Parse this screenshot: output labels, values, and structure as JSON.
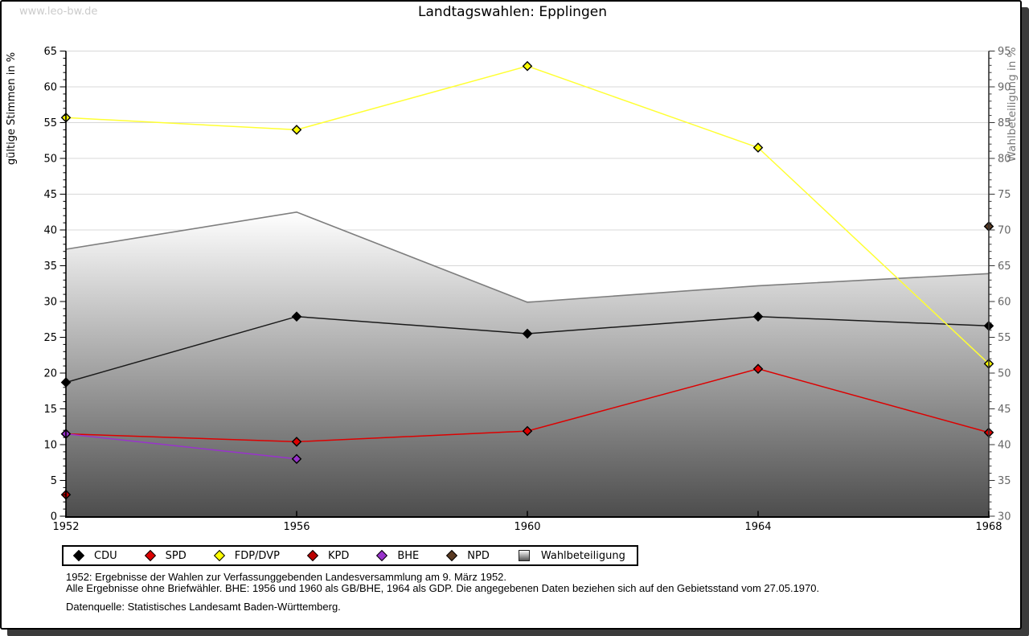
{
  "watermark": "www.leo-bw.de",
  "header": {
    "title": "Landtagswahlen: Epplingen"
  },
  "chart_data": {
    "type": "line",
    "title": "Landtagswahlen: Epplingen",
    "x_range": [
      1952,
      1968
    ],
    "x_years": [
      1952,
      1956,
      1960,
      1964,
      1968
    ],
    "left_axis": {
      "label": "gültige Stimmen in %",
      "min": 0,
      "max": 65,
      "tick_step": 5,
      "minor_step": 1
    },
    "right_axis": {
      "label": "Wahlbeteiligung in %",
      "min": 30,
      "max": 95,
      "tick_step": 5,
      "minor_step": 1
    },
    "grid": true,
    "legend_position": "bottom",
    "series": [
      {
        "name": "CDU",
        "axis": "left",
        "type": "line",
        "marker": "diamond",
        "color": "#000000",
        "line_color": "#1a1a1a",
        "x": [
          1952,
          1956,
          1960,
          1964,
          1968
        ],
        "values": [
          18.7,
          27.9,
          25.5,
          27.9,
          26.6
        ]
      },
      {
        "name": "SPD",
        "axis": "left",
        "type": "line",
        "marker": "diamond",
        "color": "#dd0000",
        "line_color": "#dd0000",
        "x": [
          1952,
          1956,
          1960,
          1964,
          1968
        ],
        "values": [
          11.5,
          10.4,
          11.9,
          20.6,
          11.7
        ]
      },
      {
        "name": "FDP/DVP",
        "axis": "left",
        "type": "line",
        "marker": "diamond",
        "color": "#ffff00",
        "line_color": "#ffff33",
        "x": [
          1952,
          1956,
          1960,
          1964,
          1968
        ],
        "values": [
          55.7,
          54.0,
          62.9,
          51.5,
          21.3
        ]
      },
      {
        "name": "KPD",
        "axis": "left",
        "type": "line",
        "marker": "diamond",
        "color": "#bb0000",
        "line_color": "#bb0000",
        "x": [
          1952
        ],
        "values": [
          3.0
        ]
      },
      {
        "name": "BHE",
        "axis": "left",
        "type": "line",
        "marker": "diamond",
        "color": "#9933cc",
        "line_color": "#9933cc",
        "x": [
          1952,
          1956
        ],
        "values": [
          11.5,
          8.0
        ]
      },
      {
        "name": "NPD",
        "axis": "left",
        "type": "line",
        "marker": "diamond",
        "color": "#5a3a22",
        "line_color": "#5a3a22",
        "x": [
          1968
        ],
        "values": [
          40.5
        ]
      },
      {
        "name": "Wahlbeteiligung",
        "axis": "right",
        "type": "area",
        "color": "#7e7e7e",
        "fill_top": "#ffffff",
        "fill_bottom": "#4d4d4d",
        "x": [
          1952,
          1956,
          1960,
          1964,
          1968
        ],
        "values": [
          67.3,
          72.5,
          59.9,
          62.2,
          63.9
        ]
      }
    ]
  },
  "footnotes": {
    "line1": "1952: Ergebnisse der Wahlen zur Verfassunggebenden Landesversammlung am 9. März 1952.",
    "line2": "Alle Ergebnisse ohne Briefwähler. BHE: 1956 und 1960 als GB/BHE, 1964 als GDP. Die angegebenen Daten beziehen sich auf den Gebietsstand vom 27.05.1970.",
    "source": "Datenquelle: Statistisches Landesamt Baden-Württemberg."
  }
}
